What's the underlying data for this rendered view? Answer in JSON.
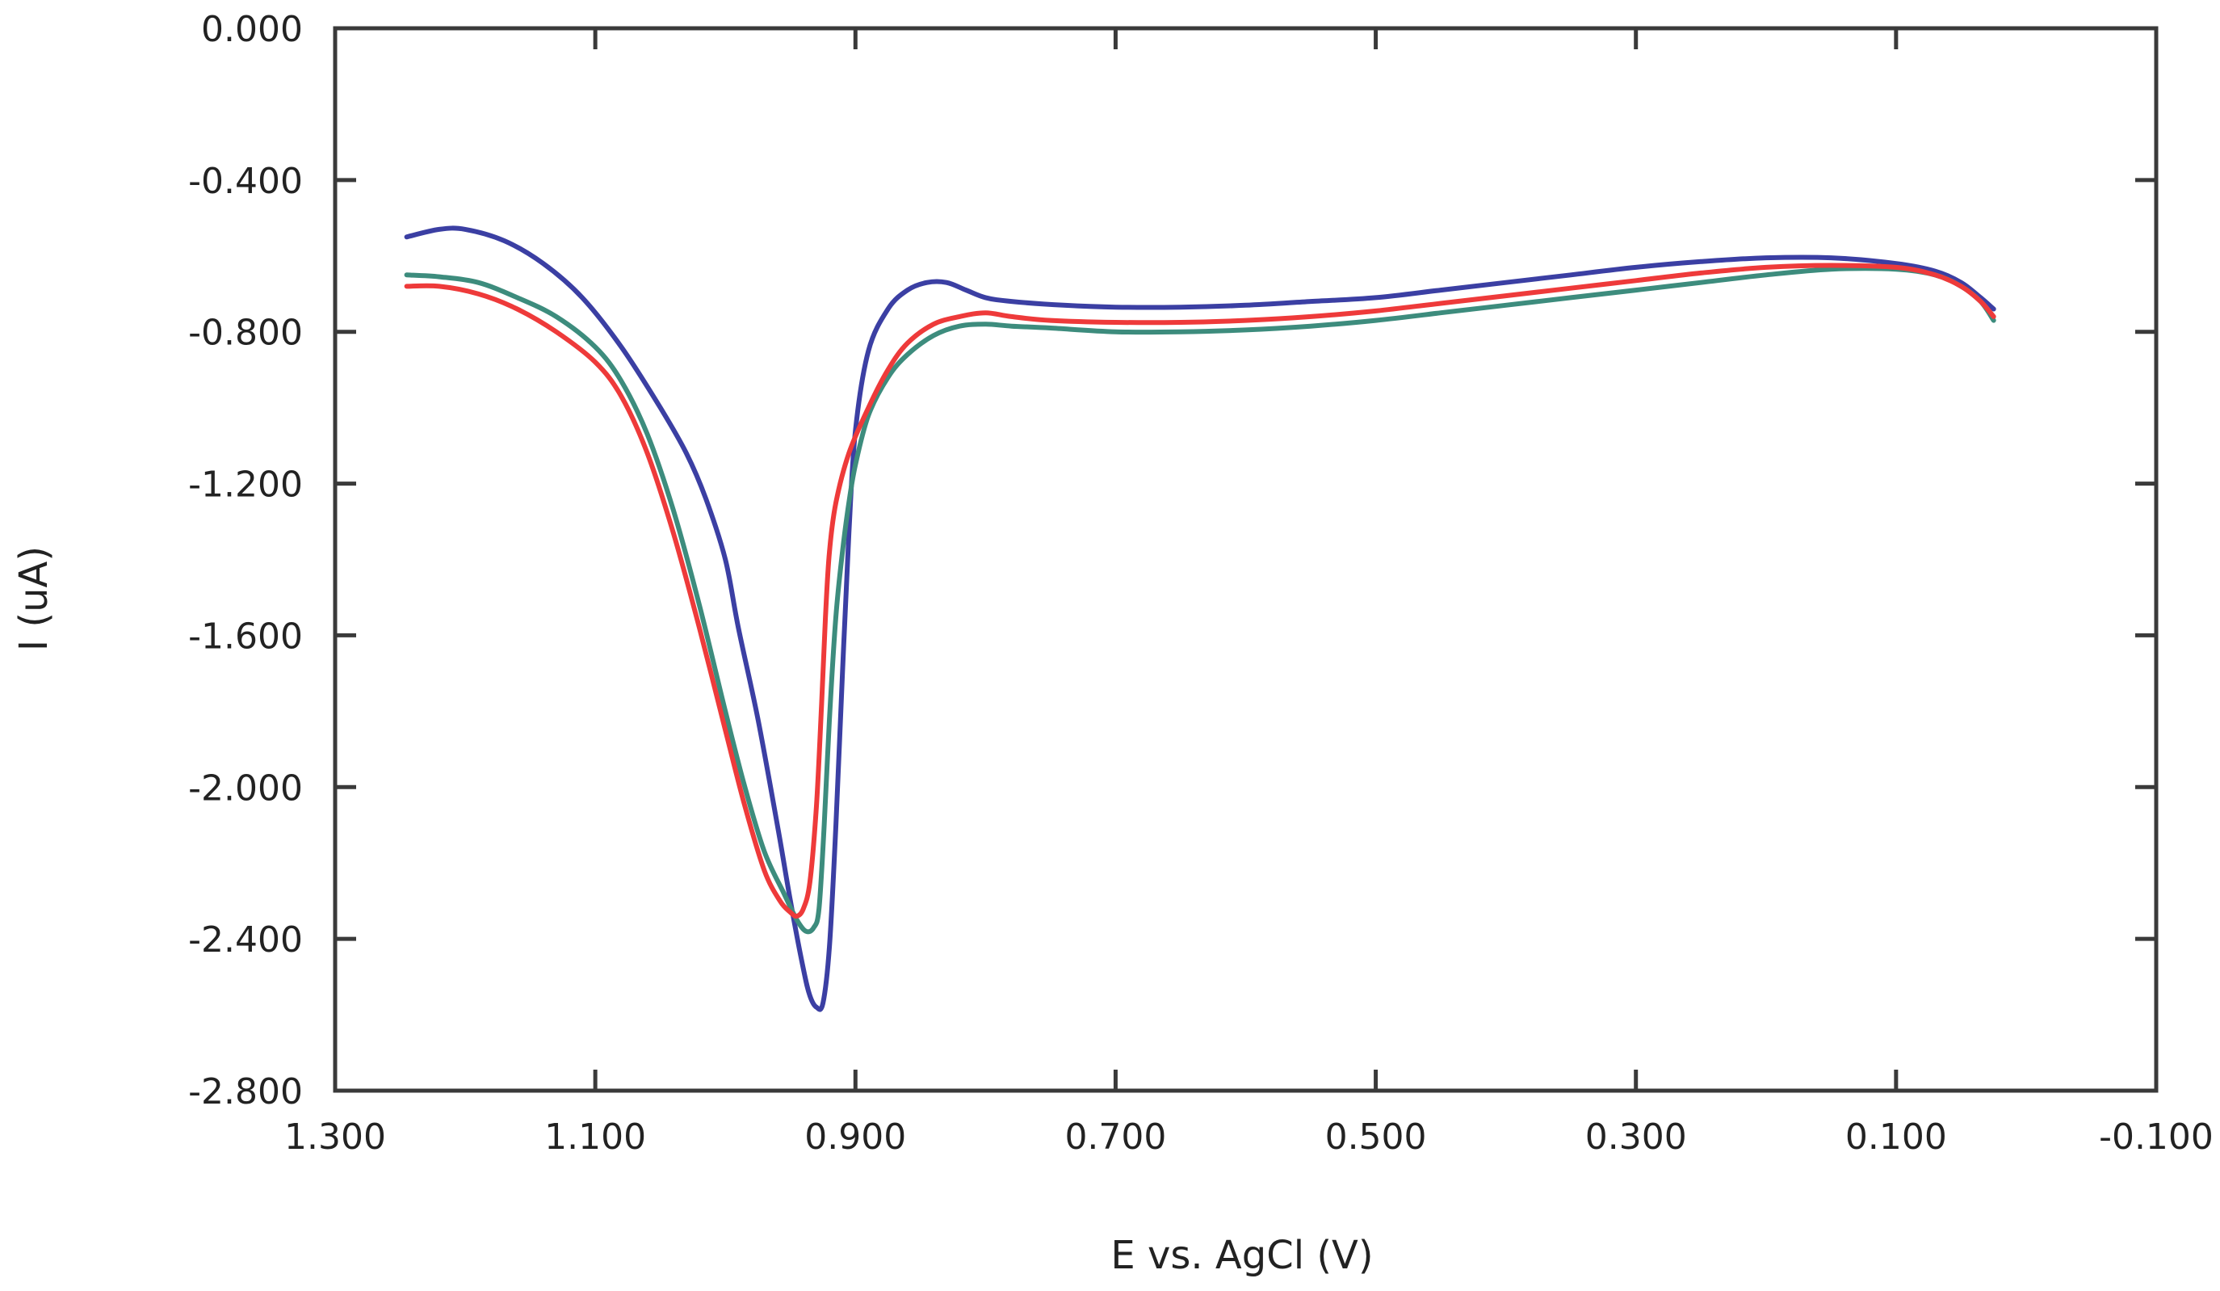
{
  "chart_data": {
    "type": "line",
    "title": "",
    "xlabel": "E vs. AgCl (V)",
    "ylabel": "I (uA)",
    "xlim": [
      1.3,
      -0.1
    ],
    "ylim": [
      -2.8,
      0.0
    ],
    "x_ticks": [
      1.3,
      1.1,
      0.9,
      0.7,
      0.5,
      0.3,
      0.1,
      -0.1
    ],
    "x_tick_labels": [
      "1.300",
      "1.100",
      "0.900",
      "0.700",
      "0.500",
      "0.300",
      "0.100",
      "-0.100"
    ],
    "y_ticks": [
      0.0,
      -0.4,
      -0.8,
      -1.2,
      -1.6,
      -2.0,
      -2.4,
      -2.8
    ],
    "y_tick_labels": [
      "0.000",
      "-0.400",
      "-0.800",
      "-1.200",
      "-1.600",
      "-2.000",
      "-2.400",
      "-2.800"
    ],
    "grid": false,
    "series": [
      {
        "name": "blue",
        "color": "#3b3fa3",
        "x": [
          1.245,
          1.22,
          1.2,
          1.17,
          1.14,
          1.11,
          1.08,
          1.05,
          1.03,
          1.015,
          1.0,
          0.99,
          0.975,
          0.96,
          0.95,
          0.94,
          0.935,
          0.93,
          0.925,
          0.92,
          0.915,
          0.91,
          0.905,
          0.9,
          0.89,
          0.875,
          0.86,
          0.845,
          0.83,
          0.815,
          0.8,
          0.78,
          0.74,
          0.7,
          0.65,
          0.6,
          0.55,
          0.5,
          0.45,
          0.4,
          0.35,
          0.3,
          0.25,
          0.2,
          0.15,
          0.1,
          0.07,
          0.05,
          0.035,
          0.025
        ],
        "values": [
          -0.55,
          -0.53,
          -0.53,
          -0.56,
          -0.62,
          -0.71,
          -0.84,
          -1.0,
          -1.12,
          -1.24,
          -1.4,
          -1.58,
          -1.82,
          -2.1,
          -2.3,
          -2.48,
          -2.55,
          -2.58,
          -2.57,
          -2.42,
          -2.1,
          -1.7,
          -1.33,
          -1.06,
          -0.85,
          -0.74,
          -0.69,
          -0.67,
          -0.67,
          -0.69,
          -0.71,
          -0.72,
          -0.73,
          -0.735,
          -0.735,
          -0.73,
          -0.72,
          -0.71,
          -0.69,
          -0.67,
          -0.65,
          -0.63,
          -0.615,
          -0.605,
          -0.605,
          -0.62,
          -0.64,
          -0.67,
          -0.71,
          -0.74
        ]
      },
      {
        "name": "red",
        "color": "#ee3a3a",
        "x": [
          1.245,
          1.22,
          1.19,
          1.16,
          1.13,
          1.1,
          1.08,
          1.06,
          1.04,
          1.02,
          1.0,
          0.985,
          0.97,
          0.958,
          0.95,
          0.945,
          0.94,
          0.935,
          0.93,
          0.926,
          0.923,
          0.92,
          0.915,
          0.905,
          0.89,
          0.875,
          0.86,
          0.84,
          0.82,
          0.8,
          0.78,
          0.75,
          0.7,
          0.65,
          0.6,
          0.55,
          0.5,
          0.45,
          0.4,
          0.35,
          0.3,
          0.25,
          0.2,
          0.15,
          0.1,
          0.07,
          0.05,
          0.035,
          0.025
        ],
        "values": [
          -0.68,
          -0.68,
          -0.7,
          -0.74,
          -0.8,
          -0.88,
          -0.97,
          -1.12,
          -1.33,
          -1.58,
          -1.85,
          -2.05,
          -2.22,
          -2.3,
          -2.33,
          -2.34,
          -2.32,
          -2.25,
          -2.05,
          -1.78,
          -1.55,
          -1.38,
          -1.25,
          -1.12,
          -1.0,
          -0.9,
          -0.83,
          -0.78,
          -0.76,
          -0.75,
          -0.76,
          -0.77,
          -0.775,
          -0.775,
          -0.77,
          -0.76,
          -0.745,
          -0.725,
          -0.705,
          -0.685,
          -0.665,
          -0.645,
          -0.63,
          -0.625,
          -0.63,
          -0.65,
          -0.68,
          -0.72,
          -0.76
        ]
      },
      {
        "name": "green",
        "color": "#3d8c7d",
        "x": [
          1.245,
          1.22,
          1.19,
          1.16,
          1.13,
          1.1,
          1.08,
          1.06,
          1.04,
          1.02,
          1.0,
          0.985,
          0.97,
          0.955,
          0.945,
          0.938,
          0.932,
          0.928,
          0.924,
          0.92,
          0.915,
          0.91,
          0.905,
          0.9,
          0.89,
          0.875,
          0.86,
          0.84,
          0.82,
          0.8,
          0.78,
          0.75,
          0.7,
          0.65,
          0.6,
          0.55,
          0.5,
          0.45,
          0.4,
          0.35,
          0.3,
          0.25,
          0.2,
          0.15,
          0.1,
          0.07,
          0.05,
          0.035,
          0.025
        ],
        "values": [
          -0.65,
          -0.655,
          -0.67,
          -0.71,
          -0.76,
          -0.84,
          -0.93,
          -1.07,
          -1.27,
          -1.52,
          -1.8,
          -2.0,
          -2.17,
          -2.28,
          -2.35,
          -2.38,
          -2.37,
          -2.32,
          -2.1,
          -1.82,
          -1.55,
          -1.38,
          -1.25,
          -1.15,
          -1.02,
          -0.92,
          -0.86,
          -0.81,
          -0.785,
          -0.78,
          -0.785,
          -0.79,
          -0.8,
          -0.8,
          -0.795,
          -0.785,
          -0.77,
          -0.75,
          -0.73,
          -0.71,
          -0.69,
          -0.67,
          -0.65,
          -0.635,
          -0.635,
          -0.65,
          -0.68,
          -0.72,
          -0.77
        ]
      }
    ]
  }
}
